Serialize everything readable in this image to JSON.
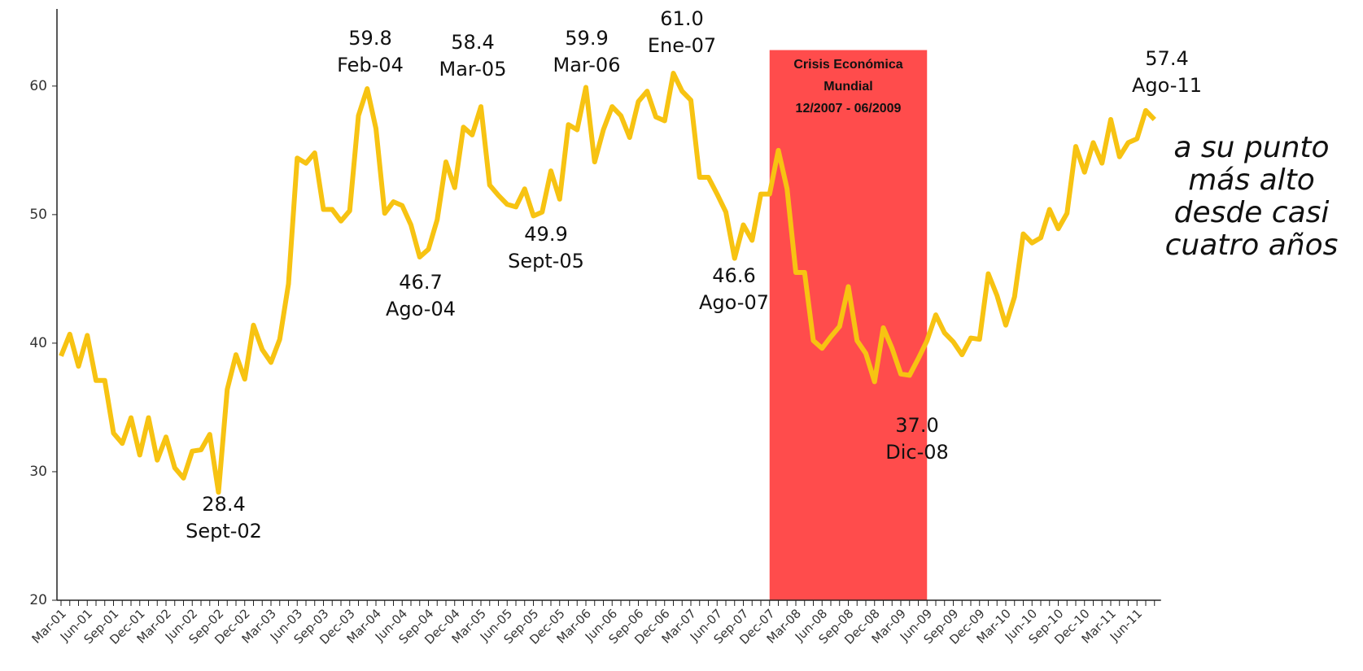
{
  "chart_data": {
    "type": "line",
    "categories": [
      "Mar-01",
      null,
      null,
      "Jun-01",
      null,
      null,
      "Sep-01",
      null,
      null,
      "Dec-01",
      null,
      null,
      "Mar-02",
      null,
      null,
      "Jun-02",
      null,
      null,
      "Sep-02",
      null,
      null,
      "Dec-02",
      null,
      null,
      "Mar-03",
      null,
      null,
      "Jun-03",
      null,
      null,
      "Sep-03",
      null,
      null,
      "Dec-03",
      null,
      null,
      "Mar-04",
      null,
      null,
      "Jun-04",
      null,
      null,
      "Sep-04",
      null,
      null,
      "Dec-04",
      null,
      null,
      "Mar-05",
      null,
      null,
      "Jun-05",
      null,
      null,
      "Sep-05",
      null,
      null,
      "Dec-05",
      null,
      null,
      "Mar-06",
      null,
      null,
      "Jun-06",
      null,
      null,
      "Sep-06",
      null,
      null,
      "Dec-06",
      null,
      null,
      "Mar-07",
      null,
      null,
      "Jun-07",
      null,
      null,
      "Sep-07",
      null,
      null,
      "Dec-07",
      null,
      null,
      "Mar-08",
      null,
      null,
      "Jun-08",
      null,
      null,
      "Sep-08",
      null,
      null,
      "Dec-08",
      null,
      null,
      "Mar-09",
      null,
      null,
      "Jun-09",
      null,
      null,
      "Sep-09",
      null,
      null,
      "Dec-09",
      null,
      null,
      "Mar-10",
      null,
      null,
      "Jun-10",
      null,
      null,
      "Sep-10",
      null,
      null,
      "Dec-10",
      null,
      null,
      "Mar-11",
      null,
      null,
      "Jun-11",
      null,
      null
    ],
    "series": [
      {
        "color": "#f7c312",
        "values": [
          39,
          40.7,
          38.2,
          40.6,
          37.1,
          37.1,
          33,
          32.2,
          34.2,
          31.3,
          34.2,
          30.9,
          32.7,
          30.3,
          29.5,
          31.6,
          31.7,
          32.9,
          28.4,
          36.4,
          39.1,
          37.2,
          41.4,
          39.5,
          38.5,
          40.3,
          44.6,
          54.4,
          54,
          54.8,
          50.4,
          50.4,
          49.5,
          50.3,
          57.7,
          59.8,
          56.7,
          50.1,
          51,
          50.7,
          49.2,
          46.7,
          47.3,
          49.6,
          54.1,
          52.1,
          56.8,
          56.2,
          58.4,
          52.3,
          51.5,
          50.8,
          50.6,
          52,
          49.9,
          50.2,
          53.4,
          51.2,
          57,
          56.6,
          59.9,
          54.1,
          56.6,
          58.4,
          57.7,
          56,
          58.8,
          59.6,
          57.6,
          57.3,
          61.0,
          59.6,
          58.9,
          52.9,
          52.9,
          51.6,
          50.2,
          46.6,
          49.2,
          48,
          51.6,
          51.6,
          55,
          52,
          45.5,
          45.5,
          40.2,
          39.6,
          40.5,
          41.3,
          44.4,
          40.2,
          39.2,
          37.0,
          41.2,
          39.6,
          37.6,
          37.5,
          38.8,
          40.2,
          42.2,
          40.8,
          40.1,
          39.1,
          40.4,
          40.3,
          45.4,
          43.7,
          41.4,
          43.6,
          48.5,
          47.8,
          48.2,
          50.4,
          48.9,
          50.1,
          55.3,
          53.3,
          55.6,
          54,
          57.4,
          54.5,
          55.6,
          55.9,
          58.1,
          57.4
        ]
      }
    ],
    "ylim": [
      20,
      66
    ],
    "yticks": [
      20,
      30,
      40,
      50,
      60
    ],
    "shade": {
      "from": "Dec-07",
      "to": "Jun-09",
      "top": 62.8,
      "color": "#ff4c4c",
      "label": [
        "Crisis Económica",
        "Mundial",
        "12/2007 - 06/2009"
      ]
    },
    "annotations": [
      {
        "value": "59.8",
        "date": "Feb-04"
      },
      {
        "value": "58.4",
        "date": "Mar-05"
      },
      {
        "value": "59.9",
        "date": "Mar-06"
      },
      {
        "value": "61.0",
        "date": "Ene-07"
      },
      {
        "value": "46.7",
        "date": "Ago-04"
      },
      {
        "value": "49.9",
        "date": "Sept-05"
      },
      {
        "value": "46.6",
        "date": "Ago-07"
      },
      {
        "value": "28.4",
        "date": "Sept-02"
      },
      {
        "value": "37.0",
        "date": "Dic-08"
      },
      {
        "value": "57.4",
        "date": "Ago-11"
      }
    ],
    "side_note": [
      "a su punto",
      "más alto",
      "desde casi",
      "cuatro años"
    ]
  }
}
